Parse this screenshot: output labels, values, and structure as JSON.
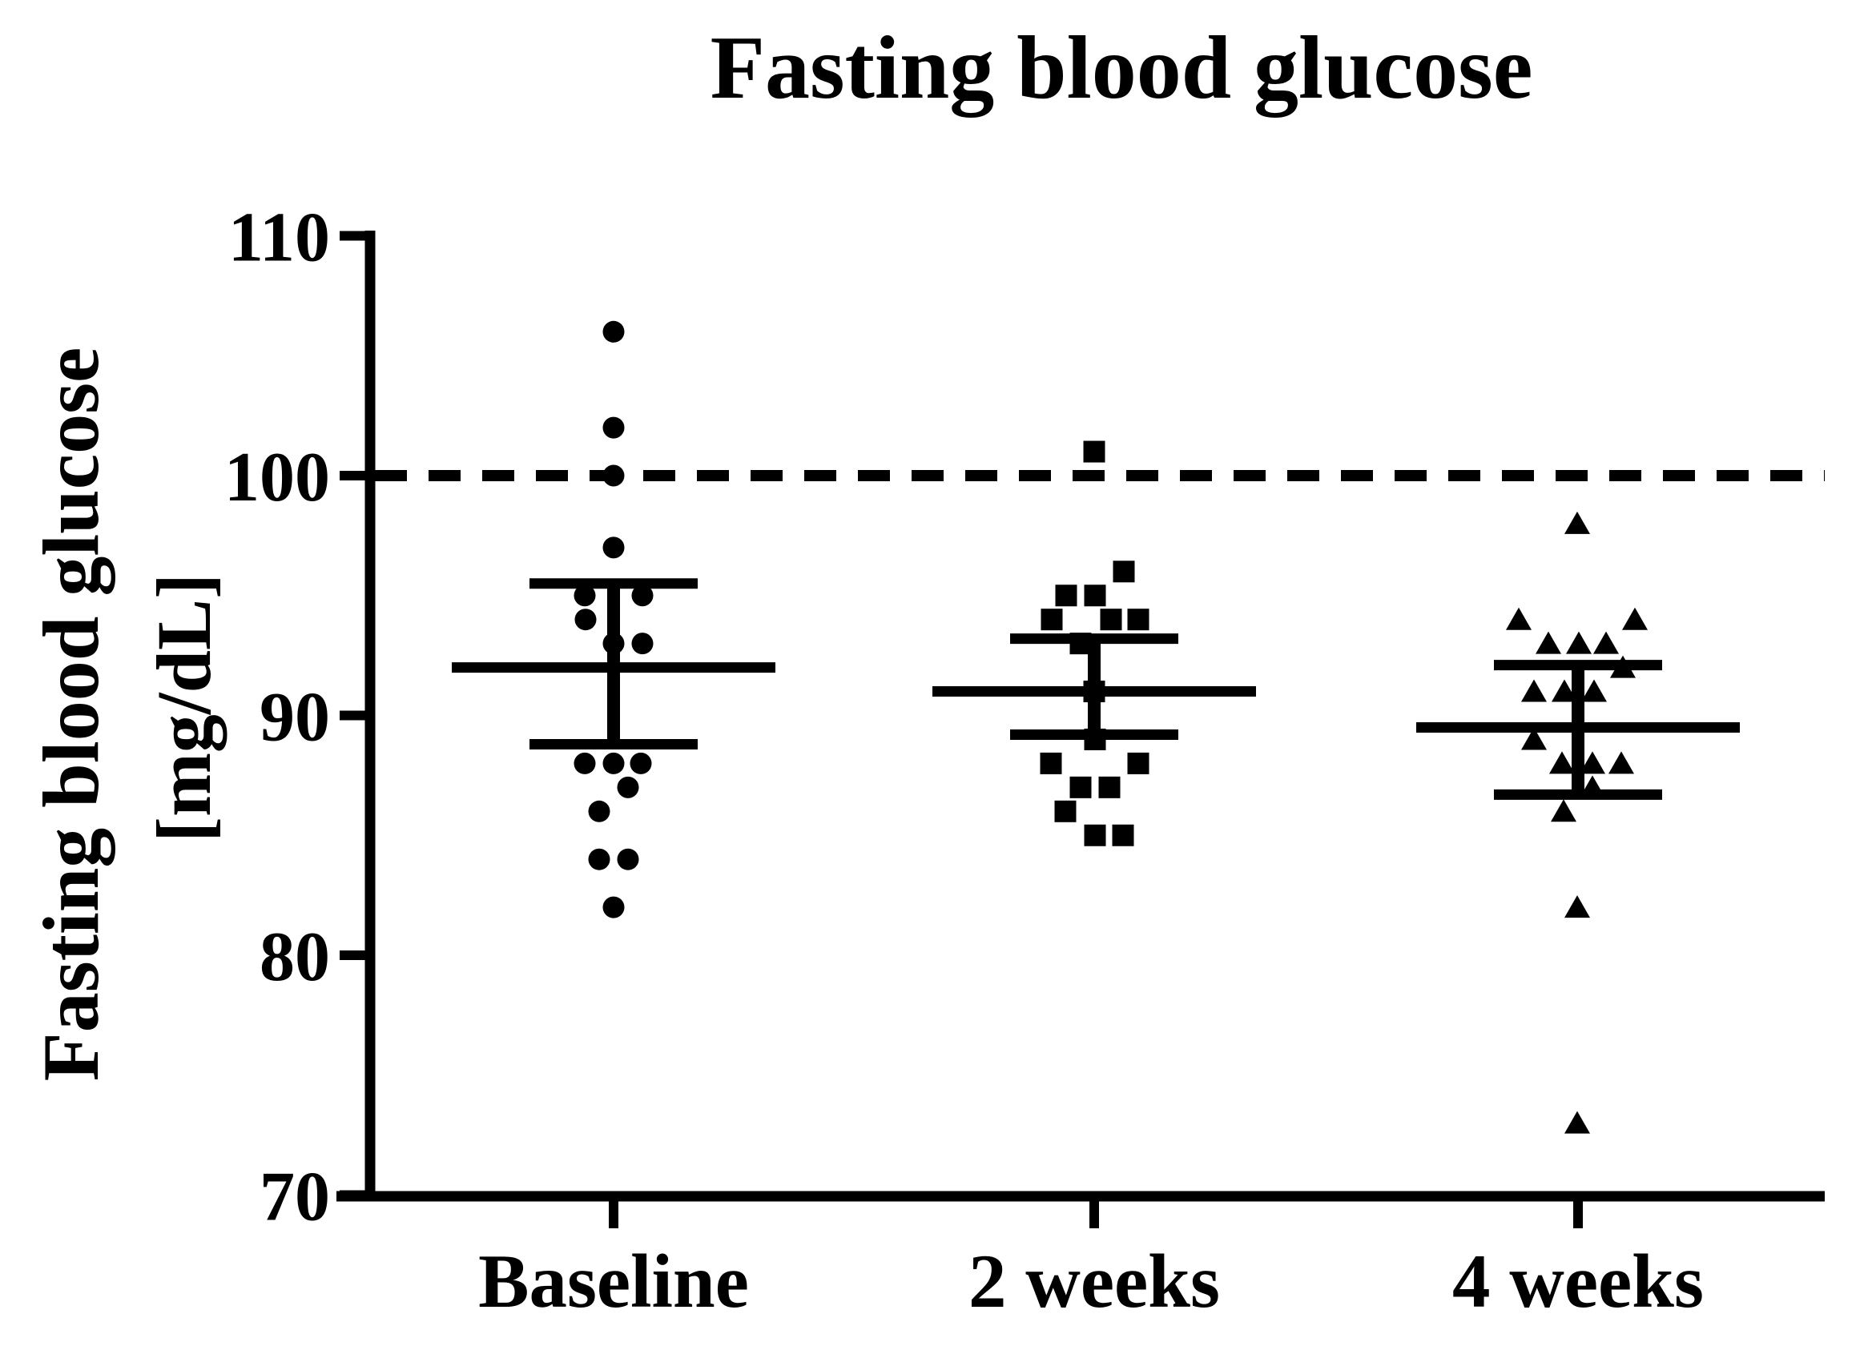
{
  "title": "Fasting blood glucose",
  "y_axis": {
    "label_line1": "Fasting blood glucose",
    "label_line2": "[mg/dL]",
    "ticks": [
      110,
      100,
      90,
      80,
      70
    ],
    "min": 70,
    "max": 110
  },
  "x_axis": {
    "categories": [
      "Baseline",
      "2 weeks",
      "4 weeks"
    ]
  },
  "reference_line": {
    "value": 100,
    "style": "dashed"
  },
  "colors": {
    "ink": "#000000",
    "background": "#ffffff"
  },
  "chart_data": {
    "type": "scatter",
    "title": "Fasting blood glucose",
    "ylabel": "Fasting blood glucose [mg/dL]",
    "ylim": [
      70,
      110
    ],
    "grid": false,
    "legend": false,
    "reference_line_y": 100,
    "categories": [
      "Baseline",
      "2 weeks",
      "4 weeks"
    ],
    "series": [
      {
        "name": "Baseline",
        "marker": "circle",
        "values": [
          106,
          102,
          100,
          97,
          95,
          95,
          94,
          93,
          93,
          88,
          88,
          88,
          87,
          86,
          84,
          84,
          82
        ],
        "x_offsets": [
          0,
          0,
          0,
          0,
          -36,
          36,
          -35,
          0,
          36,
          -36,
          0,
          34,
          18,
          -18,
          -18,
          18,
          0
        ],
        "mean": 92.0,
        "error_upper": 95.5,
        "error_lower": 88.8
      },
      {
        "name": "2 weeks",
        "marker": "square",
        "values": [
          101,
          96,
          95,
          95,
          94,
          94,
          94,
          93,
          91,
          89,
          88,
          88,
          87,
          87,
          86,
          85,
          85
        ],
        "x_offsets": [
          0,
          37,
          -35,
          1,
          -53,
          21,
          55,
          -17,
          0,
          1,
          -54,
          55,
          -17,
          19,
          -36,
          1,
          36
        ],
        "mean": 91.0,
        "error_upper": 93.2,
        "error_lower": 89.2
      },
      {
        "name": "4 weeks",
        "marker": "triangle",
        "values": [
          98,
          94,
          94,
          93,
          93,
          93,
          92,
          91,
          91,
          91,
          89,
          88,
          88,
          88,
          87,
          86,
          82,
          73
        ],
        "x_offsets": [
          -1,
          -74,
          71,
          -37,
          1,
          35,
          56,
          -55,
          -17,
          20,
          -55,
          -20,
          18,
          54,
          18,
          -18,
          -1,
          -1
        ],
        "mean": 89.5,
        "error_upper": 92.1,
        "error_lower": 86.7
      }
    ]
  }
}
